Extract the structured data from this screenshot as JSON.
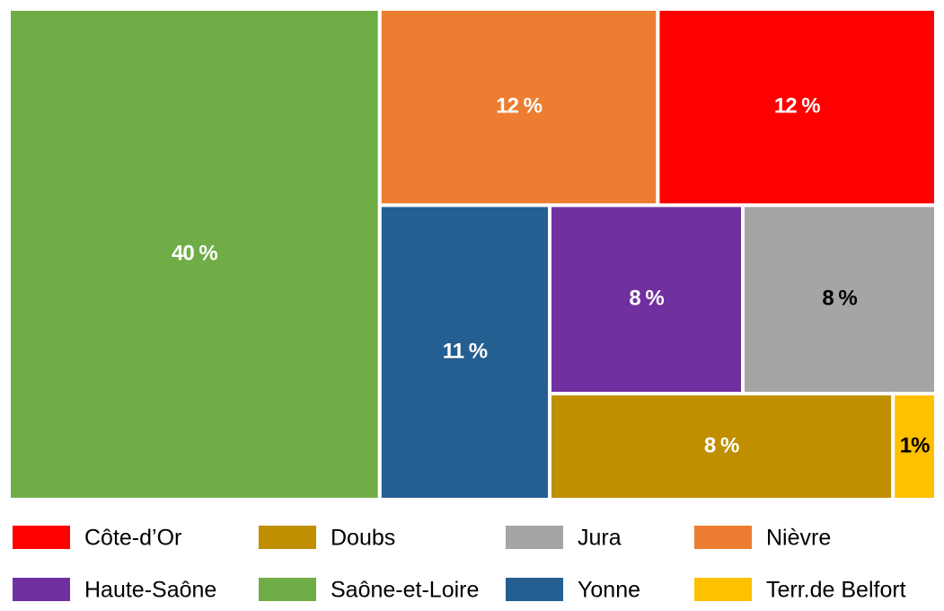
{
  "chart_data": {
    "type": "treemap",
    "series": [
      {
        "name": "Côte-d’Or",
        "color": "#ff0000",
        "values": [
          12
        ],
        "value_labels": [
          "12 %"
        ]
      },
      {
        "name": "Doubs",
        "color": "#bf8f00",
        "values": [
          8
        ],
        "value_labels": [
          "8 %"
        ]
      },
      {
        "name": "Jura",
        "color": "#a5a5a5",
        "values": [
          8
        ],
        "value_labels": [
          "8 %"
        ]
      },
      {
        "name": "Nièvre",
        "color": "#ed7d31",
        "values": [
          12
        ],
        "value_labels": [
          "12 %"
        ]
      },
      {
        "name": "Haute-Saône",
        "color": "#7030a0",
        "values": [
          8
        ],
        "value_labels": [
          "8 %"
        ]
      },
      {
        "name": "Saône-et-Loire",
        "color": "#70ad47",
        "values": [
          40
        ],
        "value_labels": [
          "40 %"
        ]
      },
      {
        "name": "Yonne",
        "color": "#255e91",
        "values": [
          11
        ],
        "value_labels": [
          "11 %"
        ]
      },
      {
        "name": "Terr.de Belfort",
        "color": "#ffc000",
        "values": [
          1
        ],
        "value_labels": [
          "1%"
        ]
      }
    ]
  }
}
